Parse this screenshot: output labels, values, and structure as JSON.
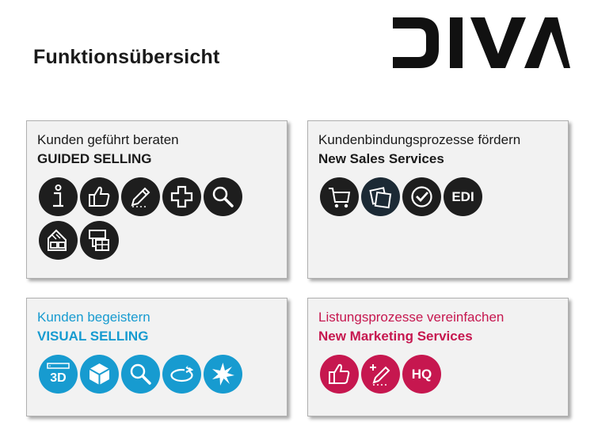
{
  "page": {
    "title": "Funktionsübersicht"
  },
  "logo": {
    "text": "DIVA"
  },
  "colors": {
    "dark": "#1e1e1e",
    "blue": "#179bd0",
    "red": "#c6174f",
    "card_bg": "#f2f2f2"
  },
  "cards": [
    {
      "subtitle": "Kunden geführt beraten",
      "heading": "GUIDED SELLING",
      "icons": [
        "info-icon",
        "thumbs-up-icon",
        "pencil-icon",
        "plus-icon",
        "search-icon",
        "room-planner-icon",
        "configurator-icon"
      ]
    },
    {
      "subtitle": "Kundenbindungsprozesse fördern",
      "heading": "New Sales Services",
      "icons": [
        "shopping-cart-icon",
        "notes-icon",
        "check-icon",
        "edi-icon"
      ],
      "edi_label": "EDI"
    },
    {
      "subtitle": "Kunden begeistern",
      "heading": "VISUAL SELLING",
      "icons": [
        "3d-icon",
        "cube-icon",
        "search-icon",
        "rotate-icon",
        "sparkle-icon"
      ],
      "three_d_label": "3D"
    },
    {
      "subtitle": "Listungsprozesse vereinfachen",
      "heading": "New Marketing Services",
      "icons": [
        "thumbs-up-icon",
        "edit-add-icon",
        "hq-icon"
      ],
      "hq_label": "HQ"
    }
  ]
}
